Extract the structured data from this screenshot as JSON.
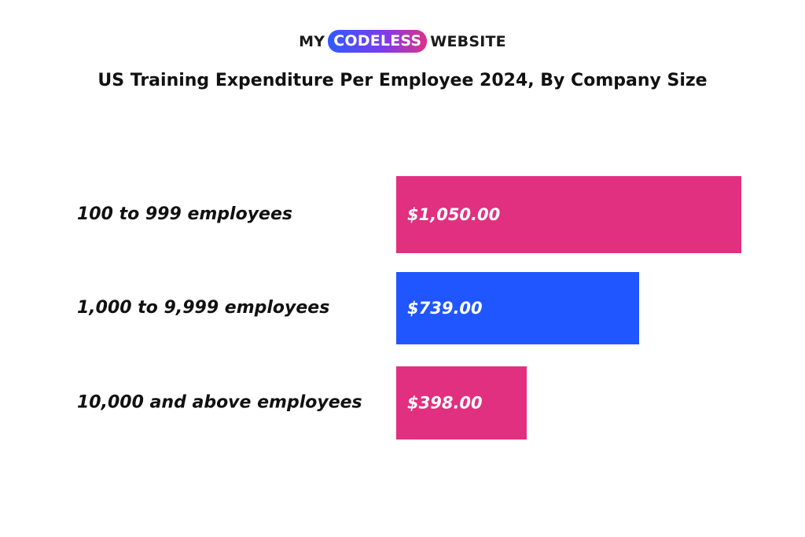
{
  "logo": {
    "left": "MY",
    "highlight": "CODELESS",
    "right": "WEBSITE"
  },
  "chart_data": {
    "type": "bar",
    "orientation": "horizontal",
    "title": "US Training Expenditure Per Employee 2024, By Company Size",
    "categories": [
      "100 to 999 employees",
      "1,000 to 9,999 employees",
      "10,000 and above employees"
    ],
    "values": [
      1050,
      739,
      398
    ],
    "value_labels": [
      "$1,050.00",
      "$739.00",
      "$398.00"
    ],
    "bar_colors": [
      "#e0307f",
      "#1f56ff",
      "#e0307f"
    ],
    "xlim": [
      0,
      1050
    ],
    "grid": false,
    "legend": "none"
  }
}
